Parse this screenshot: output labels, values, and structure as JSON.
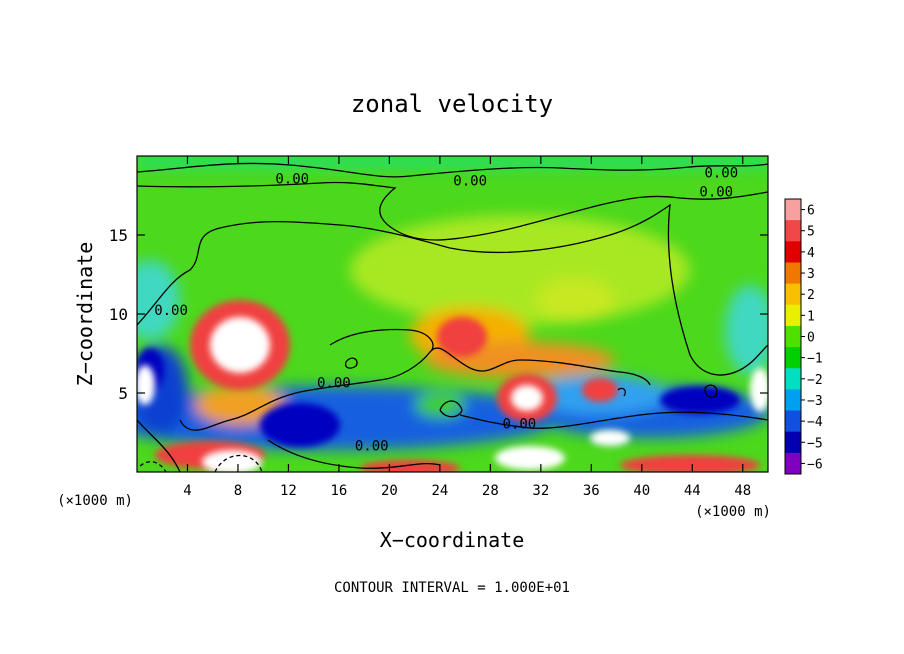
{
  "chart_data": {
    "type": "heatmap",
    "title": "zonal velocity",
    "xlabel": "X−coordinate",
    "ylabel": "Z−coordinate",
    "x_units_left": "(×1000 m)",
    "x_units_right": "(×1000 m)",
    "xlim": [
      0,
      50
    ],
    "ylim": [
      0,
      20
    ],
    "x_ticks": [
      4,
      8,
      12,
      16,
      20,
      24,
      28,
      32,
      36,
      40,
      44,
      48
    ],
    "x_tick_labels": [
      "4",
      "8",
      "12",
      "16",
      "20",
      "24",
      "28",
      "32",
      "36",
      "40",
      "44",
      "48"
    ],
    "y_ticks": [
      5,
      10,
      15
    ],
    "y_tick_labels": [
      "5",
      "10",
      "15"
    ],
    "colorbar": {
      "values": [
        6,
        5,
        4,
        3,
        2,
        1,
        0,
        -1,
        -2,
        -3,
        -4,
        -5,
        -6
      ],
      "labels": [
        "6",
        "5",
        "4",
        "3",
        "2",
        "1",
        "0",
        "−1",
        "−2",
        "−3",
        "−4",
        "−5",
        "−6"
      ],
      "colors": [
        "#f8a0a0",
        "#f04848",
        "#e00000",
        "#f07800",
        "#f8c000",
        "#e8f000",
        "#50e000",
        "#00d000",
        "#00e0c0",
        "#00a0f0",
        "#1050e0",
        "#0000b0",
        "#8000c0"
      ]
    },
    "contour_labels": [
      {
        "text": "0.00",
        "x": 12.3,
        "y": 18.5
      },
      {
        "text": "0.00",
        "x": 26.4,
        "y": 18.4
      },
      {
        "text": "0.00",
        "x": 46.3,
        "y": 18.9
      },
      {
        "text": "0.00",
        "x": 45.9,
        "y": 17.7
      },
      {
        "text": "0.00",
        "x": 2.7,
        "y": 10.2
      },
      {
        "text": "0.00",
        "x": 15.6,
        "y": 5.6
      },
      {
        "text": "0.00",
        "x": 30.3,
        "y": 3.0
      },
      {
        "text": "0.00",
        "x": 18.6,
        "y": 1.6
      }
    ],
    "footer": "CONTOUR INTERVAL = 1.000E+01"
  }
}
